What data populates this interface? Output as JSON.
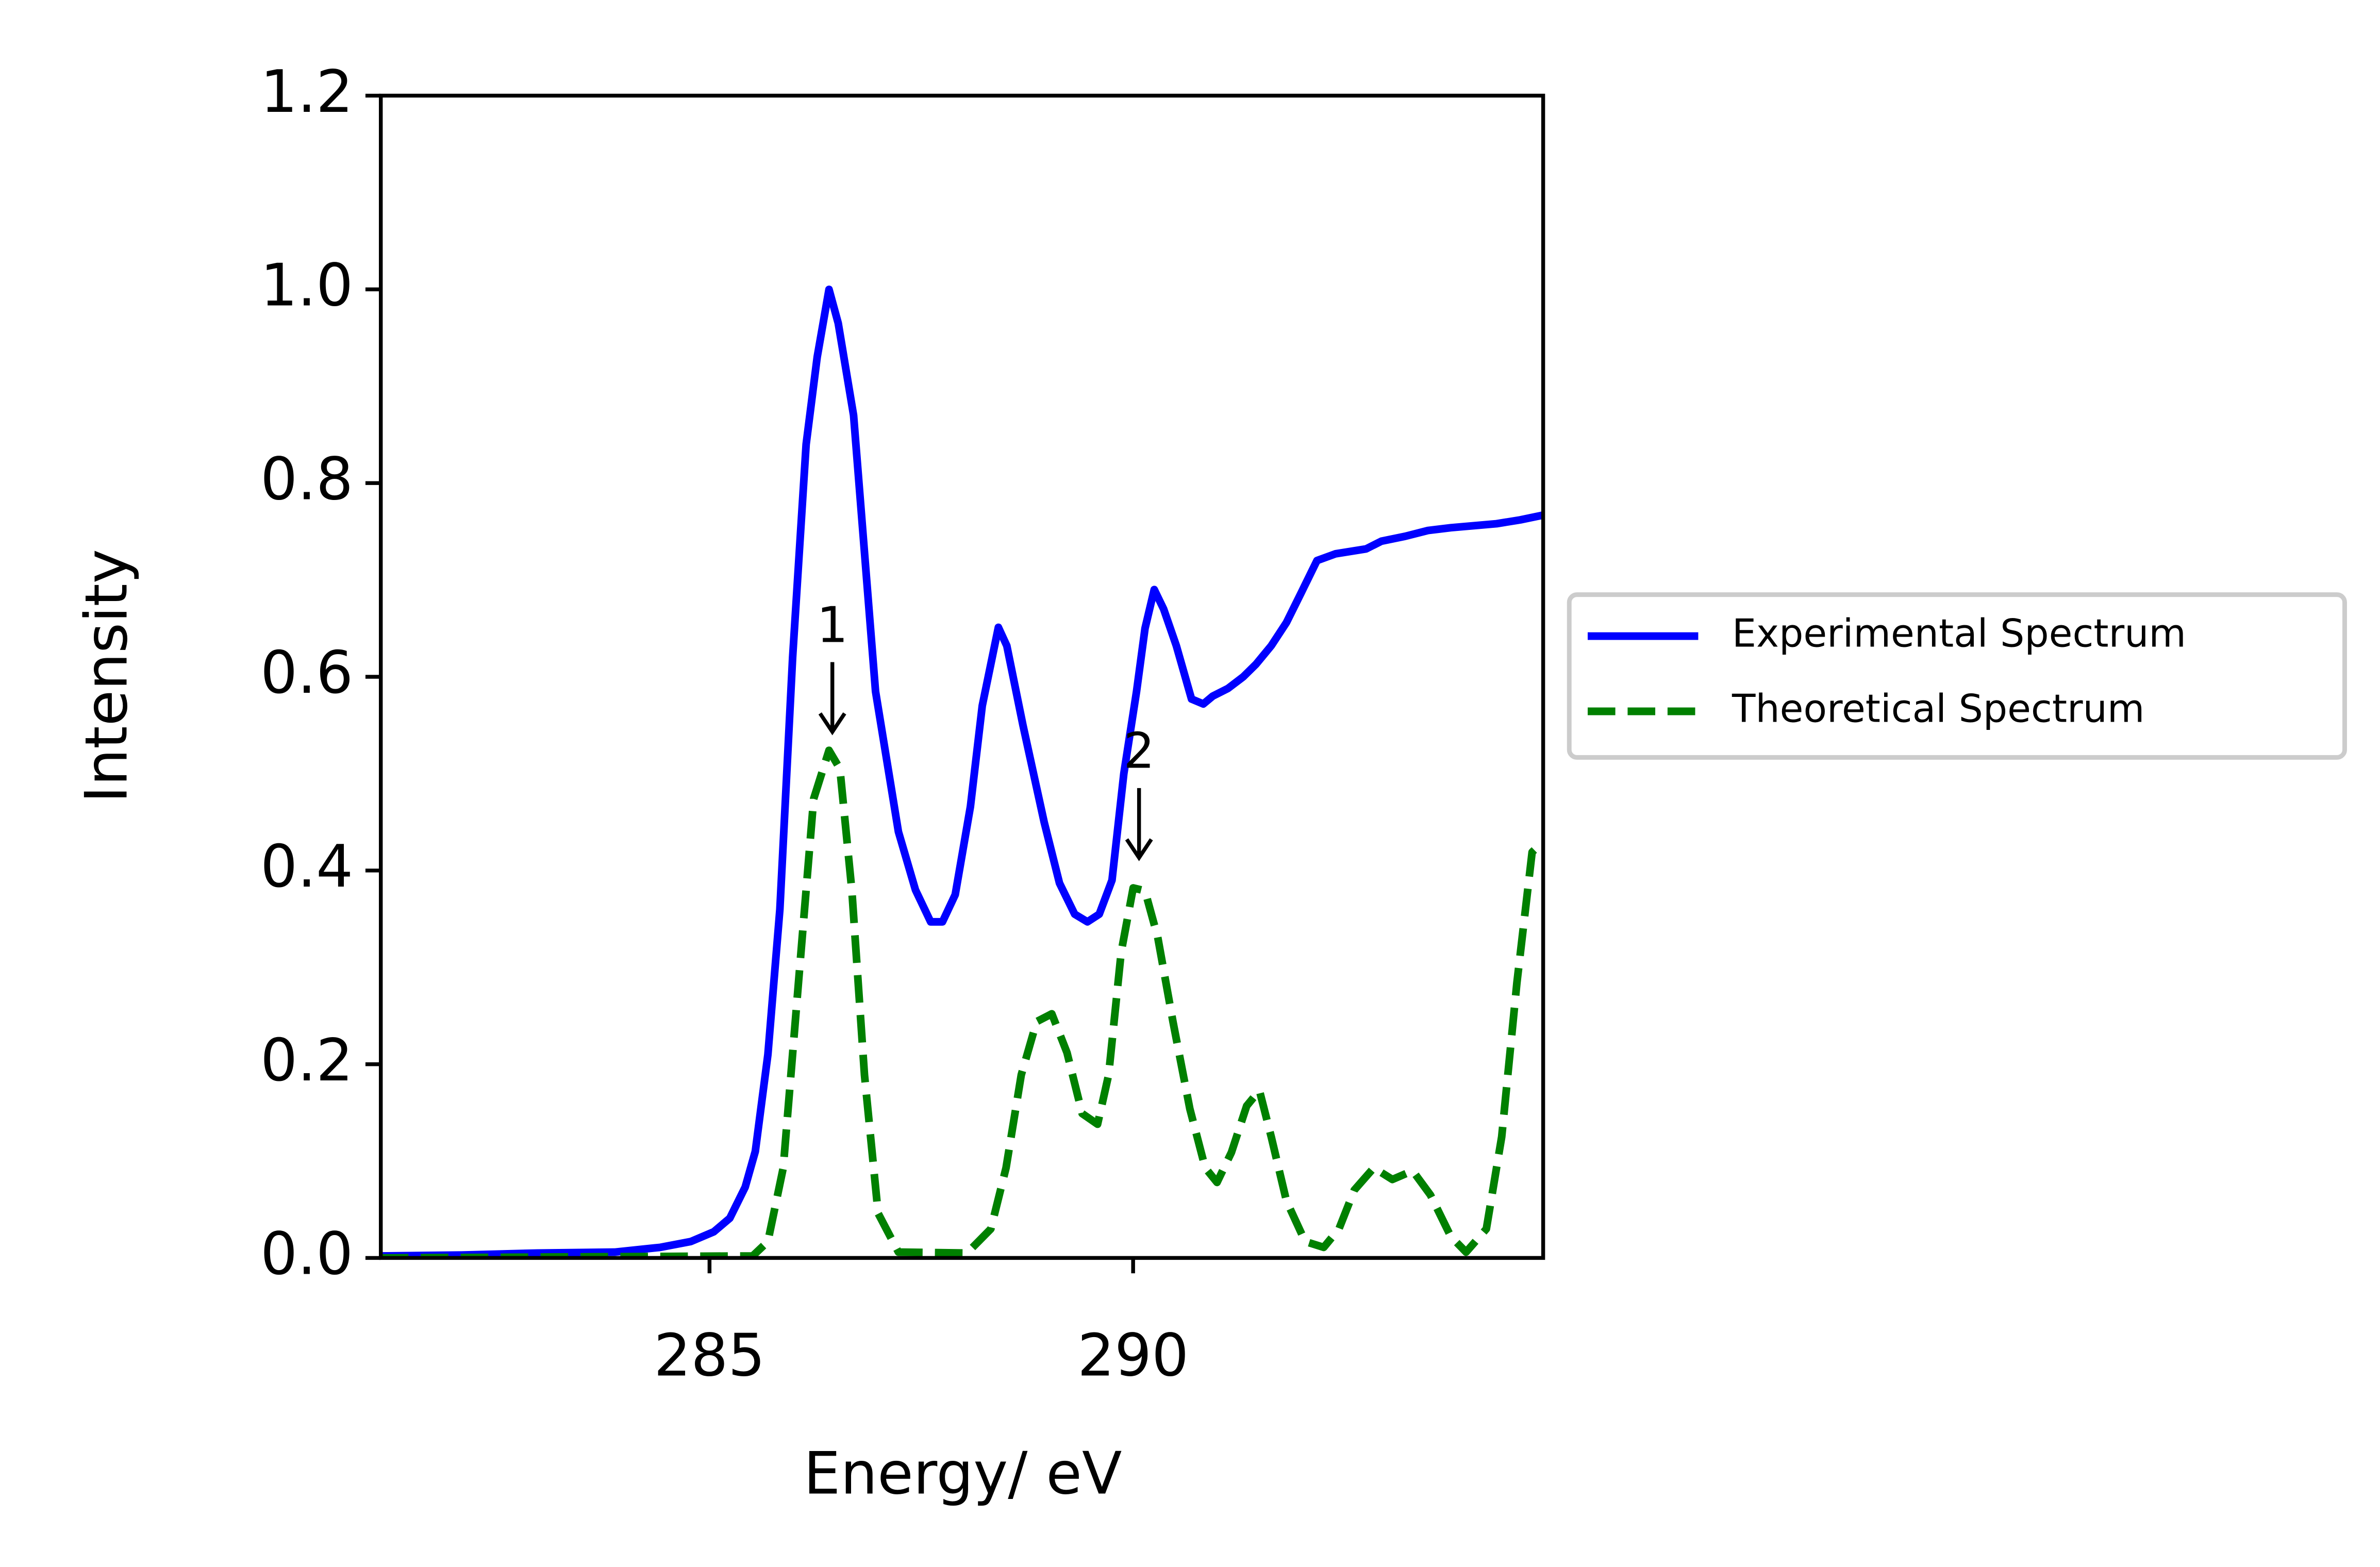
{
  "chart_data": {
    "type": "line",
    "xlabel": "Energy/ eV",
    "ylabel": "Intensity",
    "xlim": [
      281.12,
      294.84
    ],
    "ylim": [
      0,
      1.2
    ],
    "xticks": [
      285,
      290
    ],
    "yticks": [
      {
        "value": 0,
        "label": "0.0"
      },
      {
        "value": 0.2,
        "label": "0.2"
      },
      {
        "value": 0.4,
        "label": "0.4"
      },
      {
        "value": 0.6,
        "label": "0.6"
      },
      {
        "value": 0.8,
        "label": "0.8"
      },
      {
        "value": 1,
        "label": "1.0"
      },
      {
        "value": 1.2,
        "label": "1.2"
      }
    ],
    "legend": "outside-right",
    "series": [
      {
        "name": "Experimental Spectrum",
        "color": "#0000ff",
        "linestyle": "solid",
        "x": [
          281.12,
          282.07,
          282.97,
          283.88,
          284.42,
          284.78,
          285.05,
          285.24,
          285.42,
          285.54,
          285.69,
          285.83,
          285.98,
          286.14,
          286.27,
          286.41,
          286.52,
          286.7,
          286.96,
          287.23,
          287.43,
          287.61,
          287.75,
          287.9,
          288.08,
          288.22,
          288.41,
          288.51,
          288.7,
          288.95,
          289.13,
          289.31,
          289.46,
          289.6,
          289.75,
          289.89,
          290.04,
          290.14,
          290.25,
          290.36,
          290.51,
          290.69,
          290.83,
          290.94,
          291.12,
          291.3,
          291.45,
          291.63,
          291.81,
          291.99,
          292.17,
          292.39,
          292.75,
          292.93,
          293.21,
          293.48,
          293.75,
          294.02,
          294.29,
          294.57,
          294.84
        ],
        "values": [
          0.002,
          0.003,
          0.005,
          0.006,
          0.011,
          0.017,
          0.027,
          0.041,
          0.073,
          0.11,
          0.21,
          0.36,
          0.62,
          0.84,
          0.93,
          1.0,
          0.965,
          0.87,
          0.585,
          0.44,
          0.38,
          0.347,
          0.347,
          0.375,
          0.466,
          0.57,
          0.651,
          0.632,
          0.55,
          0.45,
          0.387,
          0.355,
          0.347,
          0.355,
          0.39,
          0.5,
          0.585,
          0.65,
          0.69,
          0.67,
          0.632,
          0.577,
          0.572,
          0.58,
          0.588,
          0.6,
          0.613,
          0.632,
          0.656,
          0.688,
          0.72,
          0.727,
          0.732,
          0.74,
          0.745,
          0.751,
          0.754,
          0.756,
          0.758,
          0.762,
          0.767
        ]
      },
      {
        "name": "Theoretical Spectrum",
        "color": "#008000",
        "linestyle": "dashed",
        "x": [
          281.12,
          285.51,
          285.69,
          285.87,
          286.05,
          286.23,
          286.41,
          286.54,
          286.68,
          286.83,
          286.99,
          287.23,
          288.04,
          288.32,
          288.5,
          288.68,
          288.86,
          289.04,
          289.22,
          289.4,
          289.58,
          289.71,
          289.86,
          290.0,
          290.14,
          290.29,
          290.47,
          290.67,
          290.85,
          290.99,
          291.16,
          291.34,
          291.49,
          291.63,
          291.81,
          292.03,
          292.25,
          292.43,
          292.61,
          292.84,
          293.06,
          293.3,
          293.51,
          293.75,
          293.93,
          294.17,
          294.35,
          294.53,
          294.71,
          294.84
        ],
        "values": [
          0,
          0.002,
          0.017,
          0.093,
          0.284,
          0.474,
          0.524,
          0.505,
          0.379,
          0.189,
          0.046,
          0.006,
          0.005,
          0.03,
          0.093,
          0.189,
          0.244,
          0.252,
          0.212,
          0.149,
          0.138,
          0.189,
          0.316,
          0.382,
          0.379,
          0.331,
          0.244,
          0.154,
          0.093,
          0.078,
          0.109,
          0.157,
          0.173,
          0.125,
          0.059,
          0.017,
          0.011,
          0.03,
          0.07,
          0.093,
          0.081,
          0.09,
          0.065,
          0.022,
          0.006,
          0.03,
          0.125,
          0.284,
          0.419,
          0.43
        ]
      }
    ],
    "annotations": [
      {
        "text": "1",
        "x": 286.45,
        "y": 0.54,
        "text_y": 0.65
      },
      {
        "text": "2",
        "x": 290.07,
        "y": 0.41,
        "text_y": 0.52
      }
    ]
  }
}
